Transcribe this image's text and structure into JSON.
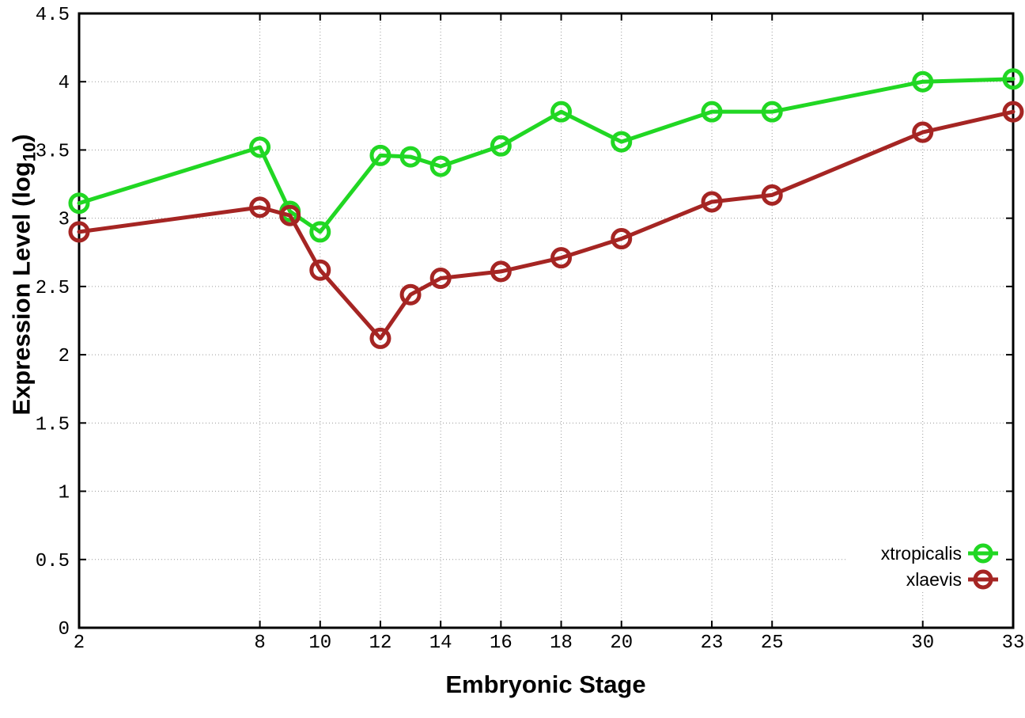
{
  "chart_data": {
    "type": "line",
    "title": "",
    "xlabel": "Embryonic Stage",
    "ylabel": "Expression Level (log10)",
    "ylabel_parts": {
      "pre": "Expression Level (log",
      "sub": "10",
      "post": ")"
    },
    "xlim": [
      2,
      33
    ],
    "ylim": [
      0,
      4.5
    ],
    "x_ticks": [
      2,
      8,
      10,
      12,
      14,
      16,
      18,
      20,
      23,
      25,
      30,
      33
    ],
    "x_tick_labels": [
      "2",
      "8",
      "10",
      "12",
      "14",
      "16",
      "18",
      "20",
      "23",
      "25",
      "30",
      "33"
    ],
    "y_ticks": [
      0,
      0.5,
      1,
      1.5,
      2,
      2.5,
      3,
      3.5,
      4,
      4.5
    ],
    "y_tick_labels": [
      "0",
      "0.5",
      "1",
      "1.5",
      "2",
      "2.5",
      "3",
      "3.5",
      "4",
      "4.5"
    ],
    "grid": true,
    "grid_style": "dotted",
    "legend_position": "bottom-right",
    "marker": "open-circle",
    "background_color": "#ffffff",
    "axis_color": "#000000",
    "grid_color": "#9a9a9a",
    "x": [
      2,
      8,
      9,
      10,
      12,
      13,
      14,
      16,
      18,
      20,
      23,
      25,
      30,
      33
    ],
    "series": [
      {
        "name": "xtropicalis",
        "color": "#21d723",
        "values": [
          3.11,
          3.52,
          3.05,
          2.9,
          3.46,
          3.45,
          3.38,
          3.53,
          3.78,
          3.56,
          3.78,
          3.78,
          4.0,
          4.02
        ]
      },
      {
        "name": "xlaevis",
        "color": "#a52523",
        "values": [
          2.9,
          3.08,
          3.02,
          2.62,
          2.12,
          2.44,
          2.56,
          2.61,
          2.71,
          2.85,
          3.12,
          3.17,
          3.63,
          3.78
        ]
      }
    ]
  }
}
